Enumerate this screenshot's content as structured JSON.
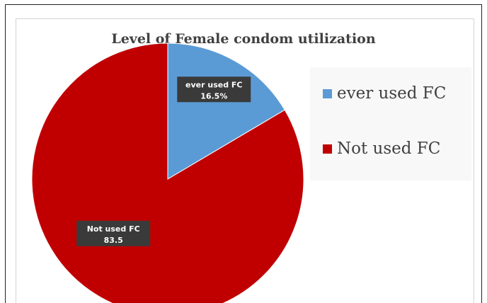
{
  "chart_data": {
    "type": "pie",
    "title": "Level of Female condom utilization",
    "legend_position": "right",
    "slices": [
      {
        "name": "ever used FC",
        "value": 16.5,
        "label_name": "ever used FC",
        "label_value": "16.5%",
        "color": "#5b9bd5"
      },
      {
        "name": "Not used FC",
        "value": 83.5,
        "label_name": "Not used FC",
        "label_value": "83.5",
        "color": "#c00000"
      }
    ]
  }
}
